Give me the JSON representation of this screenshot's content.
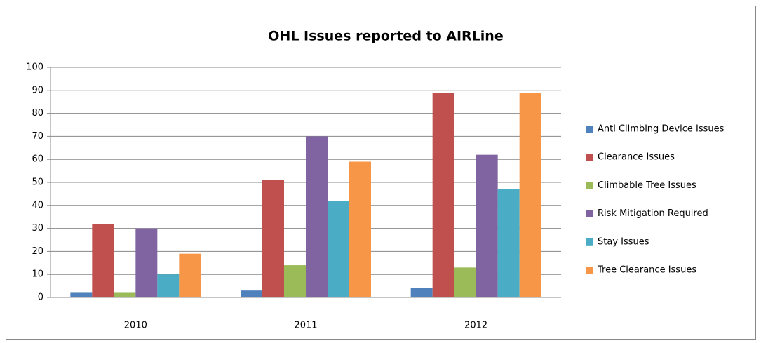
{
  "chart_data": {
    "type": "bar",
    "title": "OHL Issues reported to AIRLine",
    "categories": [
      "2010",
      "2011",
      "2012"
    ],
    "series": [
      {
        "name": "Anti Climbing Device Issues",
        "color": "#4f81bd",
        "values": [
          2,
          3,
          4
        ]
      },
      {
        "name": "Clearance Issues",
        "color": "#c0504d",
        "values": [
          32,
          51,
          89
        ]
      },
      {
        "name": "Climbable Tree Issues",
        "color": "#9bbb59",
        "values": [
          2,
          14,
          13
        ]
      },
      {
        "name": "Risk Mitigation Required",
        "color": "#8064a2",
        "values": [
          30,
          70,
          62
        ]
      },
      {
        "name": "Stay Issues",
        "color": "#4bacc6",
        "values": [
          10,
          42,
          47
        ]
      },
      {
        "name": "Tree Clearance Issues",
        "color": "#f79646",
        "values": [
          19,
          59,
          89
        ]
      }
    ],
    "ylim": [
      0,
      100
    ],
    "yticks": [
      0,
      10,
      20,
      30,
      40,
      50,
      60,
      70,
      80,
      90,
      100
    ],
    "grid": true,
    "legend": "right"
  }
}
